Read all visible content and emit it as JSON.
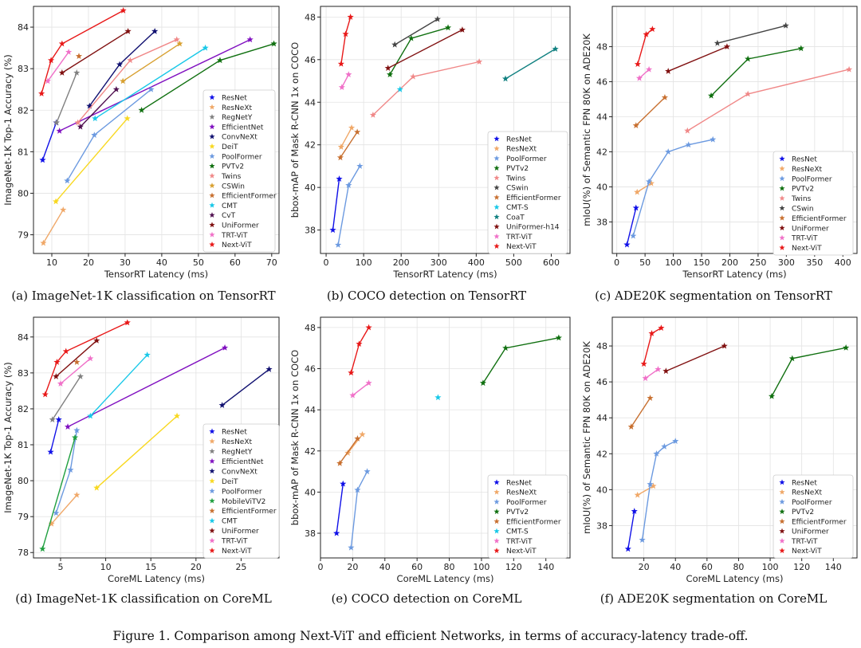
{
  "figure_caption": "Figure 1. Comparison among Next-ViT and efficient Networks, in terms of accuracy-latency trade-off.",
  "colors": {
    "ResNet": "#1010e8",
    "ResNeXt": "#f0a868",
    "RegNetY": "#808080",
    "EfficientNet": "#8010c0",
    "ConvNeXt": "#101070",
    "DeiT": "#f8d820",
    "PoolFormer": "#6c9ae0",
    "PVTv2": "#107010",
    "Twins": "#f08888",
    "CSWin": "#d8a030",
    "EfficientFormer": "#c87030",
    "CMT": "#18c8e8",
    "CvT": "#501050",
    "UniFormer": "#801010",
    "TRT-ViT": "#f070c8",
    "Next-ViT": "#e81818",
    "CMT-S": "#18c8e8",
    "CoaT": "#108080",
    "UniFormer-h14": "#801010",
    "MobileViTV2": "#20a040"
  },
  "chart_data": [
    {
      "id": "a",
      "type": "line",
      "caption": "(a) ImageNet-1K classification on TensorRT",
      "xlabel": "TensorRT Latency (ms)",
      "ylabel": "ImageNet-1K Top-1 Accuracy (%)",
      "xlim": [
        5,
        72
      ],
      "ylim": [
        78.55,
        84.5
      ],
      "xticks": [
        10,
        20,
        30,
        40,
        50,
        60,
        70
      ],
      "yticks": [
        79,
        80,
        81,
        82,
        83,
        84
      ],
      "series": [
        {
          "name": "ResNet",
          "x": [
            7.5,
            11.2
          ],
          "y": [
            80.8,
            81.7
          ]
        },
        {
          "name": "ResNeXt",
          "x": [
            7.7,
            13.1
          ],
          "y": [
            78.8,
            79.6
          ]
        },
        {
          "name": "RegNetY",
          "x": [
            11.3,
            16.8
          ],
          "y": [
            81.7,
            82.9
          ]
        },
        {
          "name": "EfficientNet",
          "x": [
            12.1,
            64.1
          ],
          "y": [
            81.5,
            83.7
          ]
        },
        {
          "name": "ConvNeXt",
          "x": [
            20.3,
            28.5,
            38.1
          ],
          "y": [
            82.1,
            83.1,
            83.9
          ]
        },
        {
          "name": "DeiT",
          "x": [
            11.1,
            30.6
          ],
          "y": [
            79.8,
            81.8
          ]
        },
        {
          "name": "PoolFormer",
          "x": [
            14.2,
            21.6,
            37.1
          ],
          "y": [
            80.3,
            81.4,
            82.5
          ]
        },
        {
          "name": "PVTv2",
          "x": [
            34.5,
            55.9,
            70.6
          ],
          "y": [
            82.0,
            83.2,
            83.6
          ]
        },
        {
          "name": "Twins",
          "x": [
            17.1,
            31.4,
            44.1
          ],
          "y": [
            81.7,
            83.2,
            83.7
          ]
        },
        {
          "name": "CSWin",
          "x": [
            29.4,
            44.9
          ],
          "y": [
            82.7,
            83.6
          ]
        },
        {
          "name": "EfficientFormer",
          "x": [
            17.4
          ],
          "y": [
            83.3
          ]
        },
        {
          "name": "CMT",
          "x": [
            21.8,
            51.9
          ],
          "y": [
            81.8,
            83.5
          ]
        },
        {
          "name": "CvT",
          "x": [
            17.8,
            27.6
          ],
          "y": [
            81.6,
            82.5
          ]
        },
        {
          "name": "UniFormer",
          "x": [
            12.8,
            30.8
          ],
          "y": [
            82.9,
            83.9
          ]
        },
        {
          "name": "TRT-ViT",
          "x": [
            8.9,
            14.6
          ],
          "y": [
            82.7,
            83.4
          ]
        },
        {
          "name": "Next-ViT",
          "x": [
            7.2,
            9.8,
            12.8,
            29.5
          ],
          "y": [
            82.4,
            83.2,
            83.6,
            84.4
          ]
        }
      ]
    },
    {
      "id": "b",
      "type": "line",
      "caption": "(b) COCO detection on TensorRT",
      "xlabel": "TensorRT Latency (ms)",
      "ylabel": "bbox-mAP of Mask R-CNN 1x on COCO",
      "xlim": [
        -15,
        650
      ],
      "ylim": [
        36.9,
        48.5
      ],
      "xticks": [
        0,
        100,
        200,
        300,
        400,
        500,
        600
      ],
      "yticks": [
        38,
        40,
        42,
        44,
        46,
        48
      ],
      "series": [
        {
          "name": "ResNet",
          "x": [
            18,
            35
          ],
          "y": [
            38.0,
            40.4
          ]
        },
        {
          "name": "ResNeXt",
          "x": [
            40,
            68
          ],
          "y": [
            41.9,
            42.8
          ]
        },
        {
          "name": "PoolFormer",
          "x": [
            32,
            60,
            90
          ],
          "y": [
            37.3,
            40.1,
            41.0
          ]
        },
        {
          "name": "PVTv2",
          "x": [
            170,
            227,
            325
          ],
          "y": [
            45.3,
            47.0,
            47.5
          ]
        },
        {
          "name": "Twins",
          "x": [
            125,
            232,
            408
          ],
          "y": [
            43.4,
            45.2,
            45.9
          ]
        },
        {
          "name": "CSwin",
          "x": [
            183,
            297
          ],
          "y": [
            46.7,
            47.9
          ]
        },
        {
          "name": "EfficientFormer",
          "x": [
            38,
            83
          ],
          "y": [
            41.4,
            42.6
          ]
        },
        {
          "name": "CMT-S",
          "x": [
            197
          ],
          "y": [
            44.6
          ]
        },
        {
          "name": "CoaT",
          "x": [
            478,
            611
          ],
          "y": [
            45.1,
            46.5
          ]
        },
        {
          "name": "UniFormer-h14",
          "x": [
            165,
            363
          ],
          "y": [
            45.6,
            47.4
          ]
        },
        {
          "name": "TRT-ViT",
          "x": [
            42,
            60
          ],
          "y": [
            44.7,
            45.3
          ]
        },
        {
          "name": "Next-ViT",
          "x": [
            40,
            52,
            65
          ],
          "y": [
            45.8,
            47.2,
            48.0
          ]
        }
      ]
    },
    {
      "id": "c",
      "type": "line",
      "caption": "(c) ADE20K segmentation on TensorRT",
      "xlabel": "TensorRT Latency (ms)",
      "ylabel": "mIoU(%) of Semantic FPN 80K on ADE20K",
      "xlim": [
        -8,
        425
      ],
      "ylim": [
        36.2,
        50.3
      ],
      "xticks": [
        0,
        50,
        100,
        150,
        200,
        250,
        300,
        350,
        400
      ],
      "yticks": [
        38,
        40,
        42,
        44,
        46,
        48
      ],
      "series": [
        {
          "name": "ResNet",
          "x": [
            18,
            34
          ],
          "y": [
            36.7,
            38.8
          ]
        },
        {
          "name": "ResNeXt",
          "x": [
            36,
            61
          ],
          "y": [
            39.7,
            40.2
          ]
        },
        {
          "name": "PoolFormer",
          "x": [
            29,
            57,
            91,
            127,
            170
          ],
          "y": [
            37.2,
            40.3,
            42.0,
            42.4,
            42.7
          ]
        },
        {
          "name": "PVTv2",
          "x": [
            167,
            232,
            326
          ],
          "y": [
            45.2,
            47.3,
            47.9
          ]
        },
        {
          "name": "Twins",
          "x": [
            125,
            232,
            411
          ],
          "y": [
            43.2,
            45.3,
            46.7
          ]
        },
        {
          "name": "CSwin",
          "x": [
            178,
            299
          ],
          "y": [
            48.2,
            49.2
          ]
        },
        {
          "name": "EfficientFormer",
          "x": [
            34,
            85
          ],
          "y": [
            43.5,
            45.1
          ]
        },
        {
          "name": "UniFormer",
          "x": [
            91,
            195
          ],
          "y": [
            46.6,
            48.0
          ]
        },
        {
          "name": "TRT-ViT",
          "x": [
            40,
            57
          ],
          "y": [
            46.2,
            46.7
          ]
        },
        {
          "name": "Next-ViT",
          "x": [
            37,
            52,
            63
          ],
          "y": [
            47.0,
            48.7,
            49.0
          ]
        }
      ]
    },
    {
      "id": "d",
      "type": "line",
      "caption": "(d) ImageNet-1K classification on CoreML",
      "xlabel": "CoreML Latency (ms)",
      "ylabel": "ImageNet-1K Top-1 Accuracy (%)",
      "xlim": [
        2,
        29.2
      ],
      "ylim": [
        77.85,
        84.55
      ],
      "xticks": [
        5,
        10,
        15,
        20,
        25
      ],
      "yticks": [
        78,
        79,
        80,
        81,
        82,
        83,
        84
      ],
      "series": [
        {
          "name": "ResNet",
          "x": [
            3.9,
            4.8
          ],
          "y": [
            80.8,
            81.7
          ]
        },
        {
          "name": "ResNeXt",
          "x": [
            4.0,
            6.8
          ],
          "y": [
            78.8,
            79.6
          ]
        },
        {
          "name": "RegNetY",
          "x": [
            4.1,
            7.2
          ],
          "y": [
            81.7,
            82.9
          ]
        },
        {
          "name": "EfficientNet",
          "x": [
            5.8,
            23.2
          ],
          "y": [
            81.5,
            83.7
          ]
        },
        {
          "name": "ConvNeXt",
          "x": [
            22.9,
            28.1
          ],
          "y": [
            82.1,
            83.1
          ]
        },
        {
          "name": "DeiT",
          "x": [
            9.0,
            17.9
          ],
          "y": [
            79.8,
            81.8
          ]
        },
        {
          "name": "PoolFormer",
          "x": [
            4.5,
            6.1,
            6.8
          ],
          "y": [
            79.1,
            80.3,
            81.4
          ]
        },
        {
          "name": "MobileViTV2",
          "x": [
            3.0,
            6.6
          ],
          "y": [
            78.1,
            81.2
          ]
        },
        {
          "name": "EfficientFormer",
          "x": [
            6.8
          ],
          "y": [
            83.3
          ]
        },
        {
          "name": "CMT",
          "x": [
            8.3,
            14.6
          ],
          "y": [
            81.8,
            83.5
          ]
        },
        {
          "name": "UniFormer",
          "x": [
            4.5,
            9.0
          ],
          "y": [
            82.9,
            83.9
          ]
        },
        {
          "name": "TRT-ViT",
          "x": [
            5.0,
            8.3
          ],
          "y": [
            82.7,
            83.4
          ]
        },
        {
          "name": "Next-ViT",
          "x": [
            3.3,
            4.6,
            5.6,
            12.4
          ],
          "y": [
            82.4,
            83.3,
            83.6,
            84.4
          ]
        }
      ]
    },
    {
      "id": "e",
      "type": "line",
      "caption": "(e) COCO detection on CoreML",
      "xlabel": "CoreML Latency (ms)",
      "ylabel": "bbox-mAP of Mask R-CNN 1x on COCO",
      "xlim": [
        0,
        155
      ],
      "ylim": [
        36.8,
        48.5
      ],
      "xticks": [
        0,
        20,
        40,
        60,
        80,
        100,
        120,
        140
      ],
      "yticks": [
        38,
        40,
        42,
        44,
        46,
        48
      ],
      "series": [
        {
          "name": "ResNet",
          "x": [
            10,
            14
          ],
          "y": [
            38.0,
            40.4
          ]
        },
        {
          "name": "ResNeXt",
          "x": [
            17,
            26
          ],
          "y": [
            41.9,
            42.8
          ]
        },
        {
          "name": "PoolFormer",
          "x": [
            19,
            23,
            29
          ],
          "y": [
            37.3,
            40.1,
            41.0
          ]
        },
        {
          "name": "PVTv2",
          "x": [
            101,
            115,
            148
          ],
          "y": [
            45.3,
            47.0,
            47.5
          ]
        },
        {
          "name": "EfficientFormer",
          "x": [
            12,
            23
          ],
          "y": [
            41.4,
            42.6
          ]
        },
        {
          "name": "CMT-S",
          "x": [
            73
          ],
          "y": [
            44.6
          ]
        },
        {
          "name": "TRT-ViT",
          "x": [
            20,
            30
          ],
          "y": [
            44.7,
            45.3
          ]
        },
        {
          "name": "Next-ViT",
          "x": [
            19,
            24,
            30
          ],
          "y": [
            45.8,
            47.2,
            48.0
          ]
        }
      ]
    },
    {
      "id": "f",
      "type": "line",
      "caption": "(f) ADE20K segmentation on CoreML",
      "xlabel": "CoreML Latency (ms)",
      "ylabel": "mIoU(%) of Semantic FPN 80K on ADE20K",
      "xlim": [
        0,
        155
      ],
      "ylim": [
        36.2,
        49.6
      ],
      "xticks": [
        20,
        40,
        60,
        80,
        100,
        120,
        140
      ],
      "yticks": [
        38,
        40,
        42,
        44,
        46,
        48
      ],
      "series": [
        {
          "name": "ResNet",
          "x": [
            10,
            14
          ],
          "y": [
            36.7,
            38.8
          ]
        },
        {
          "name": "ResNeXt",
          "x": [
            16,
            26
          ],
          "y": [
            39.7,
            40.2
          ]
        },
        {
          "name": "PoolFormer",
          "x": [
            19,
            24,
            28,
            33,
            40
          ],
          "y": [
            37.2,
            40.3,
            42.0,
            42.4,
            42.7
          ]
        },
        {
          "name": "PVTv2",
          "x": [
            101,
            114,
            148
          ],
          "y": [
            45.2,
            47.3,
            47.9
          ]
        },
        {
          "name": "EfficientFormer",
          "x": [
            12,
            24
          ],
          "y": [
            43.5,
            45.1
          ]
        },
        {
          "name": "UniFormer",
          "x": [
            34,
            71
          ],
          "y": [
            46.6,
            48.0
          ]
        },
        {
          "name": "TRT-ViT",
          "x": [
            21,
            29
          ],
          "y": [
            46.2,
            46.7
          ]
        },
        {
          "name": "Next-ViT",
          "x": [
            20,
            25,
            31
          ],
          "y": [
            47.0,
            48.7,
            49.0
          ]
        }
      ]
    }
  ]
}
